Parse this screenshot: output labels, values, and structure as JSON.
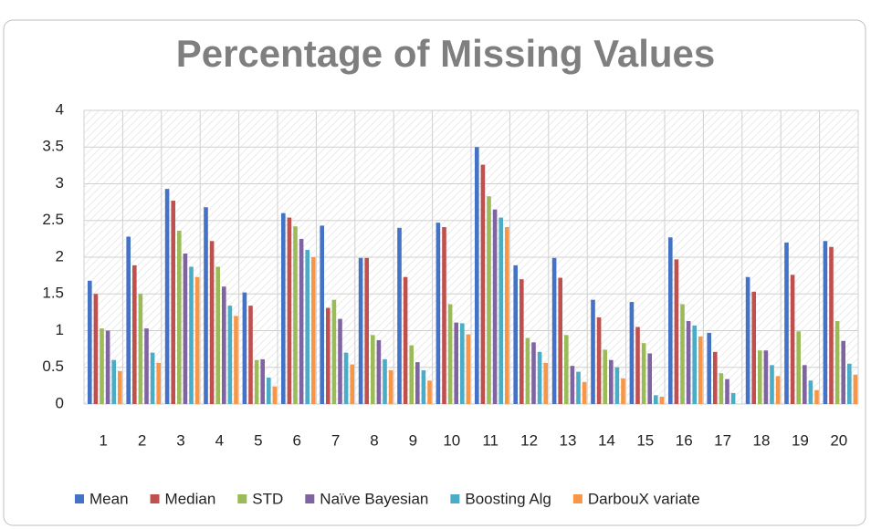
{
  "chart_data": {
    "type": "bar",
    "title": "Percentage of Missing Values",
    "categories": [
      "1",
      "2",
      "3",
      "4",
      "5",
      "6",
      "7",
      "8",
      "9",
      "10",
      "11",
      "12",
      "13",
      "14",
      "15",
      "16",
      "17",
      "18",
      "19",
      "20"
    ],
    "series": [
      {
        "name": "Mean",
        "color": "#4472c4",
        "values": [
          1.68,
          2.28,
          2.93,
          2.68,
          1.52,
          2.6,
          2.43,
          1.99,
          2.4,
          2.47,
          3.5,
          1.89,
          1.99,
          1.42,
          1.39,
          2.27,
          0.97,
          1.73,
          2.2,
          2.22
        ]
      },
      {
        "name": "Median",
        "color": "#c0504d",
        "values": [
          1.5,
          1.89,
          2.77,
          2.22,
          1.34,
          2.54,
          1.31,
          1.99,
          1.73,
          2.41,
          3.26,
          1.7,
          1.72,
          1.18,
          1.05,
          1.97,
          0.71,
          1.53,
          1.76,
          2.14
        ]
      },
      {
        "name": "STD",
        "color": "#9bbb59",
        "values": [
          1.03,
          1.5,
          2.36,
          1.87,
          0.6,
          2.42,
          1.42,
          0.94,
          0.8,
          1.36,
          2.83,
          0.9,
          0.94,
          0.74,
          0.83,
          1.36,
          0.42,
          0.73,
          0.99,
          1.13
        ]
      },
      {
        "name": "Naïve Bayesian",
        "color": "#8064a2",
        "values": [
          1.0,
          1.03,
          2.05,
          1.6,
          0.61,
          2.25,
          1.16,
          0.87,
          0.57,
          1.11,
          2.65,
          0.84,
          0.52,
          0.6,
          0.69,
          1.13,
          0.34,
          0.73,
          0.53,
          0.86
        ]
      },
      {
        "name": "Boosting Alg",
        "color": "#4bacc6",
        "values": [
          0.6,
          0.7,
          1.87,
          1.34,
          0.36,
          2.1,
          0.7,
          0.61,
          0.46,
          1.1,
          2.54,
          0.71,
          0.44,
          0.5,
          0.12,
          1.07,
          0.15,
          0.53,
          0.32,
          0.55
        ]
      },
      {
        "name": "DarbouX variate",
        "color": "#f79646",
        "values": [
          0.45,
          0.56,
          1.73,
          1.2,
          0.24,
          2.0,
          0.54,
          0.46,
          0.32,
          0.95,
          2.41,
          0.56,
          0.3,
          0.35,
          0.1,
          0.92,
          0,
          0.38,
          0.19,
          0.4
        ]
      }
    ],
    "ylim": [
      0,
      4
    ],
    "yticks": [
      0,
      0.5,
      1,
      1.5,
      2,
      2.5,
      3,
      3.5,
      4
    ],
    "grid": true,
    "legend": "bottom"
  }
}
